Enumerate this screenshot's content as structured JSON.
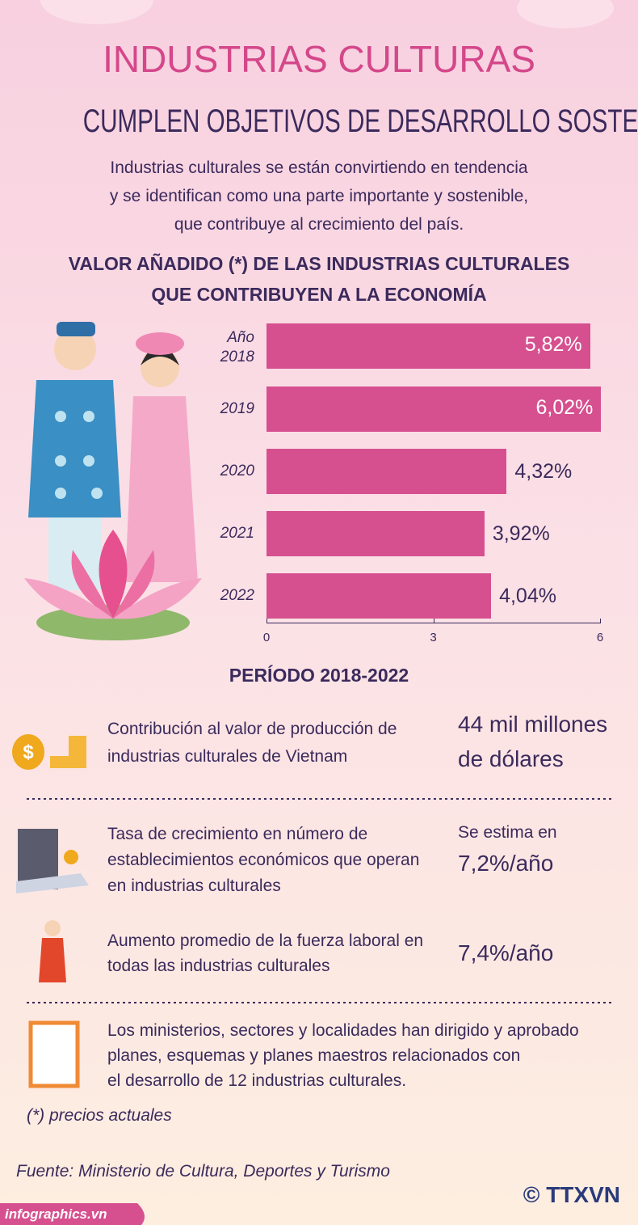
{
  "header": {
    "title": "INDUSTRIAS CULTURAS",
    "subtitle": "CUMPLEN OBJETIVOS DE DESARROLLO SOSTENIBLE",
    "intro": [
      "Industrias culturales se están convirtiendo en tendencia",
      "y se identifican como una parte importante y sostenible,",
      "que contribuye al crecimiento del país."
    ]
  },
  "chart_data": {
    "type": "bar",
    "orientation": "horizontal",
    "title": [
      "VALOR AÑADIDO (*) DE LAS INDUSTRIAS CULTURALES",
      "QUE CONTRIBUYEN A LA ECONOMÍA"
    ],
    "categories": [
      "Año 2018",
      "2019",
      "2020",
      "2021",
      "2022"
    ],
    "values": [
      5.82,
      6.02,
      4.32,
      3.92,
      4.04
    ],
    "value_labels": [
      "5,82%",
      "6,02%",
      "4,32%",
      "3,92%",
      "4,04%"
    ],
    "color": "#d6508f",
    "xlim": [
      0,
      6
    ],
    "xticks": [
      0,
      3,
      6
    ],
    "footer": "PERÍODO 2018-2022"
  },
  "items": [
    {
      "lines": [
        "Contribución al valor de producción de",
        "industrias culturales de Vietnam"
      ],
      "value_lines": [
        "44 mil millones",
        "de dólares"
      ]
    },
    {
      "lines": [
        "Tasa de crecimiento en número de",
        "establecimientos económicos que operan",
        "en industrias culturales"
      ],
      "note": "Se estima en",
      "value_lines": [
        "7,2%/año"
      ]
    },
    {
      "lines": [
        "Aumento promedio de la fuerza laboral en",
        "todas las industrias culturales"
      ],
      "value_lines": [
        "7,4%/año"
      ]
    },
    {
      "lines": [
        "Los ministerios, sectores y localidades han dirigido y aprobado",
        "planes, esquemas y planes maestros relacionados con",
        "el desarrollo de 12 industrias culturales."
      ]
    }
  ],
  "footnote": "(*) precios actuales",
  "source": "Fuente: Ministerio de Cultura, Deportes y Turismo",
  "credit": "© TTXVN",
  "site": "infographics.vn"
}
